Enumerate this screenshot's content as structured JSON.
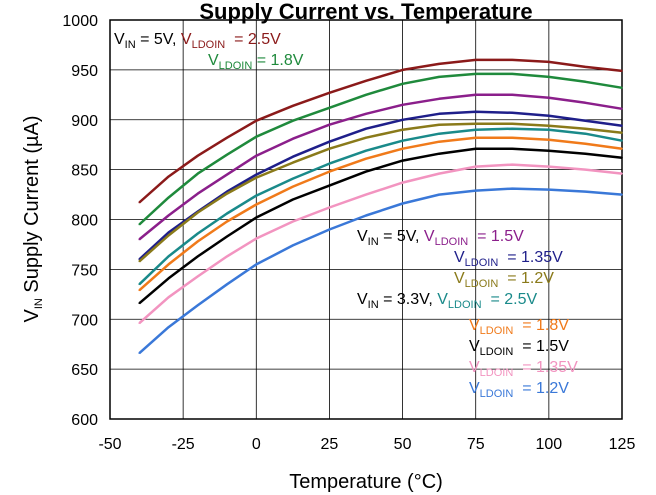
{
  "chart_data": {
    "type": "line",
    "title": "Supply Current vs. Temperature",
    "xlabel": "Temperature (°C)",
    "ylabel": {
      "main": "V",
      "sub": "IN",
      "rest": " Supply Current (µA)"
    },
    "xlim": [
      -50,
      125
    ],
    "ylim": [
      600,
      1000
    ],
    "xticks": [
      -50,
      -25,
      0,
      25,
      50,
      75,
      100,
      125
    ],
    "yticks": [
      600,
      650,
      700,
      750,
      800,
      850,
      900,
      950,
      1000
    ],
    "grid": true,
    "x": [
      -40,
      -30,
      -20,
      -10,
      0,
      12.5,
      25,
      37.5,
      50,
      62.5,
      75,
      87.5,
      100,
      112.5,
      125
    ],
    "series": [
      {
        "name": "VIN = 5V, VLDOIN = 2.5V",
        "color": "#8b1a1a",
        "values": [
          817,
          843,
          864,
          882,
          899,
          914,
          927,
          939,
          950,
          956,
          960,
          960,
          958,
          953,
          949
        ]
      },
      {
        "name": "VIN = 5V, VLDOIN = 1.8V",
        "color": "#1f8a3c",
        "values": [
          795,
          822,
          846,
          865,
          883,
          899,
          912,
          925,
          936,
          943,
          946,
          946,
          943,
          938,
          932
        ]
      },
      {
        "name": "VIN = 5V, VLDOIN = 1.5V",
        "color": "#8b1f8b",
        "values": [
          780,
          804,
          826,
          845,
          864,
          881,
          895,
          906,
          915,
          921,
          925,
          925,
          922,
          917,
          911
        ]
      },
      {
        "name": "VIN = 5V, VLDOIN = 1.35V",
        "color": "#1f1f8a",
        "values": [
          760,
          787,
          808,
          828,
          845,
          863,
          878,
          891,
          900,
          906,
          908,
          907,
          904,
          899,
          894
        ]
      },
      {
        "name": "VIN = 5V, VLDOIN = 1.2V",
        "color": "#8a7a1a",
        "values": [
          758,
          784,
          807,
          826,
          842,
          857,
          871,
          882,
          890,
          895,
          896,
          896,
          894,
          891,
          887
        ]
      },
      {
        "name": "VIN = 3.3V, VLDOIN = 2.5V",
        "color": "#1a8a8a",
        "values": [
          735,
          763,
          786,
          806,
          824,
          841,
          856,
          869,
          879,
          886,
          890,
          891,
          890,
          886,
          879
        ]
      },
      {
        "name": "VIN = 3.3V, VLDOIN = 1.8V",
        "color": "#f07a1a",
        "values": [
          729,
          755,
          778,
          798,
          815,
          833,
          848,
          861,
          871,
          878,
          882,
          882,
          880,
          876,
          871
        ]
      },
      {
        "name": "VIN = 3.3V, VLDOIN = 1.5V",
        "color": "#000000",
        "values": [
          716,
          741,
          763,
          783,
          802,
          820,
          834,
          848,
          859,
          866,
          871,
          871,
          869,
          866,
          862
        ]
      },
      {
        "name": "VIN = 3.3V, VLDOIN = 1.35V",
        "color": "#f294c0",
        "values": [
          696,
          722,
          743,
          763,
          781,
          798,
          812,
          825,
          837,
          846,
          853,
          855,
          853,
          850,
          846
        ]
      },
      {
        "name": "VIN = 3.3V, VLDOIN = 1.2V",
        "color": "#3a78d8",
        "values": [
          666,
          692,
          714,
          735,
          755,
          774,
          790,
          804,
          816,
          825,
          829,
          831,
          830,
          828,
          825
        ]
      }
    ],
    "annotations": [
      {
        "parts": [
          {
            "t": "V",
            "c": "#000000"
          },
          {
            "t": "IN",
            "c": "#000000",
            "sub": true
          },
          {
            "t": " = 5V, ",
            "c": "#000000"
          },
          {
            "t": "V",
            "c": "#8b1a1a"
          },
          {
            "t": "LDOIN",
            "c": "#8b1a1a",
            "sub": true
          },
          {
            "t": "  = 2.5V",
            "c": "#8b1a1a"
          }
        ]
      },
      {
        "parts": [
          {
            "t": "V",
            "c": "#1f8a3c"
          },
          {
            "t": "LDOIN",
            "c": "#1f8a3c",
            "sub": true
          },
          {
            "t": " = 1.8V",
            "c": "#1f8a3c"
          }
        ]
      },
      {
        "parts": [
          {
            "t": "V",
            "c": "#000000"
          },
          {
            "t": "IN",
            "c": "#000000",
            "sub": true
          },
          {
            "t": " = 5V, ",
            "c": "#000000"
          },
          {
            "t": "V",
            "c": "#8b1f8b"
          },
          {
            "t": "LDOIN",
            "c": "#8b1f8b",
            "sub": true
          },
          {
            "t": "  = 1.5V",
            "c": "#8b1f8b"
          }
        ]
      },
      {
        "parts": [
          {
            "t": "V",
            "c": "#1f1f8a"
          },
          {
            "t": "LDOIN",
            "c": "#1f1f8a",
            "sub": true
          },
          {
            "t": "  = 1.35V",
            "c": "#1f1f8a"
          }
        ]
      },
      {
        "parts": [
          {
            "t": "V",
            "c": "#8a7a1a"
          },
          {
            "t": "LDOIN",
            "c": "#8a7a1a",
            "sub": true
          },
          {
            "t": "  = 1.2V",
            "c": "#8a7a1a"
          }
        ]
      },
      {
        "parts": [
          {
            "t": "V",
            "c": "#000000"
          },
          {
            "t": "IN",
            "c": "#000000",
            "sub": true
          },
          {
            "t": " = 3.3V, ",
            "c": "#000000"
          },
          {
            "t": "V",
            "c": "#1a8a8a"
          },
          {
            "t": "LDOIN",
            "c": "#1a8a8a",
            "sub": true
          },
          {
            "t": "  = 2.5V",
            "c": "#1a8a8a"
          }
        ]
      },
      {
        "parts": [
          {
            "t": "V",
            "c": "#f07a1a"
          },
          {
            "t": "LDOIN",
            "c": "#f07a1a",
            "sub": true
          },
          {
            "t": "  = 1.8V",
            "c": "#f07a1a"
          }
        ]
      },
      {
        "parts": [
          {
            "t": "V",
            "c": "#000000"
          },
          {
            "t": "LDOIN",
            "c": "#000000",
            "sub": true
          },
          {
            "t": "  = 1.5V",
            "c": "#000000"
          }
        ]
      },
      {
        "parts": [
          {
            "t": "V",
            "c": "#f294c0"
          },
          {
            "t": "LDOIN",
            "c": "#f294c0",
            "sub": true
          },
          {
            "t": "  = 1.35V",
            "c": "#f294c0"
          }
        ]
      },
      {
        "parts": [
          {
            "t": "V",
            "c": "#3a78d8"
          },
          {
            "t": "LDOIN",
            "c": "#3a78d8",
            "sub": true
          },
          {
            "t": "  = 1.2V",
            "c": "#3a78d8"
          }
        ]
      }
    ]
  }
}
